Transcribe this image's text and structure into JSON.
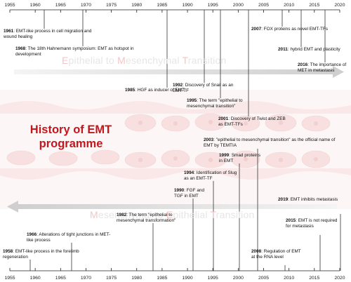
{
  "axis": {
    "ticks": [
      "1955",
      "1960",
      "1965",
      "1970",
      "1975",
      "1980",
      "1985",
      "1990",
      "1995",
      "2000",
      "2005",
      "2010",
      "2015",
      "2020"
    ]
  },
  "title": "History of EMT programme",
  "bands": {
    "top": {
      "E": "E",
      "pithelial": "pithelial to ",
      "M": "M",
      "esenchymal": "esenchymal ",
      "T": "T",
      "ransition": "ransition"
    },
    "bottom": {
      "M": "M",
      "esenchymal": "esenchymal to ",
      "E": "E",
      "pithelial": "pithelial ",
      "T": "T",
      "ransition": "ransition"
    }
  },
  "events_top": [
    {
      "year": "1961",
      "text": "EMT-like process in cell migration and  wound healing"
    },
    {
      "year": "1968",
      "text": "The 18th Hahnemann symposium: EMT as hotspot in development"
    },
    {
      "year": "1985",
      "text": "HGF as inducer of EMT"
    },
    {
      "year": "1992",
      "text": "Discovery of Snail as an EMT-TF"
    },
    {
      "year": "1995",
      "text": "The term \"epithelial to mesenchymal transition\""
    },
    {
      "year": "2001",
      "text": "Discovery of Twist and ZEB as EMT-TFs"
    },
    {
      "year": "2007",
      "text": "FOX proteins as novel EMT-TFs"
    },
    {
      "year": "2011",
      "text": "hybrid EMT and plasticity"
    },
    {
      "year": "2016",
      "text": "The importance of MET in metastasis"
    }
  ],
  "events_bottom": [
    {
      "year": "2003",
      "text": "\"epithelial to mesenchymal transition\" as the official name of EMT by TEMTIA"
    },
    {
      "year": "1999",
      "text": "Smad proteins in EMT"
    },
    {
      "year": "1994",
      "text": "Identification of Slug as an EMT-TF"
    },
    {
      "year": "1990",
      "text": "FGF and TGF in EMT"
    },
    {
      "year": "1982",
      "text": "The term \"epithelial to mesenchymal transformation\""
    },
    {
      "year": "1966",
      "text": "Alterations of tight junctions in MET-like process"
    },
    {
      "year": "1958",
      "text": "EMT-like process in the forelimb regeneration"
    },
    {
      "year": "2019",
      "text": "EMT inhibits metastasis"
    },
    {
      "year": "2015",
      "text": "EMT is not required for metastasis"
    },
    {
      "year": "2008",
      "text": "Regulation of EMT at the RNA level"
    }
  ]
}
